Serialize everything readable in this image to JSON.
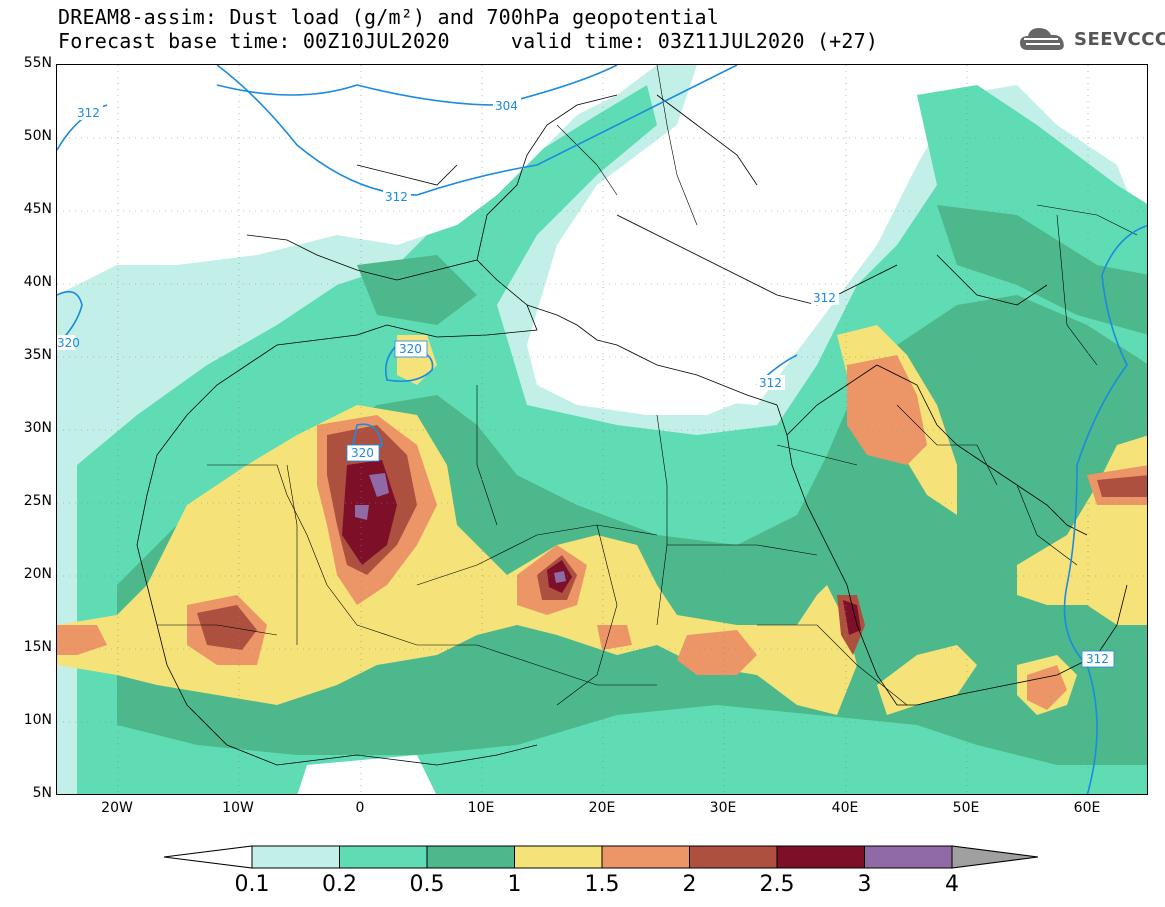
{
  "header": {
    "title": "DREAM8-assim: Dust load (g/m²) and 700hPa geopotential",
    "subtitle": "Forecast base time: 00Z10JUL2020     valid time: 03Z11JUL2020 (+27)",
    "logo_text": "SEEVCCC",
    "logo_icon": "cloud-icon"
  },
  "map": {
    "lon_range": [
      -25,
      65
    ],
    "lat_range": [
      5,
      55
    ],
    "lat_labels": [
      "55N",
      "50N",
      "45N",
      "40N",
      "35N",
      "30N",
      "25N",
      "20N",
      "15N",
      "10N",
      "5N"
    ],
    "lon_labels": [
      "20W",
      "10W",
      "0",
      "10E",
      "20E",
      "30E",
      "40E",
      "50E",
      "60E"
    ],
    "geopotential_labels": [
      "312",
      "304",
      "312",
      "312",
      "320",
      "320",
      "320",
      "312",
      "312"
    ]
  },
  "legend": {
    "tick_labels": [
      "0.1",
      "0.2",
      "0.5",
      "1",
      "1.5",
      "2",
      "2.5",
      "3",
      "4"
    ],
    "colors": [
      "#c2f0e8",
      "#5fdcb4",
      "#4cb88c",
      "#f5e37a",
      "#ec9668",
      "#ad5040",
      "#7d0f28",
      "#8f6aa6"
    ],
    "under_color": "#ffffff",
    "over_color": "#a0a0a0"
  },
  "colors": {
    "contour": "#1a8be0",
    "coastline": "#000000"
  }
}
